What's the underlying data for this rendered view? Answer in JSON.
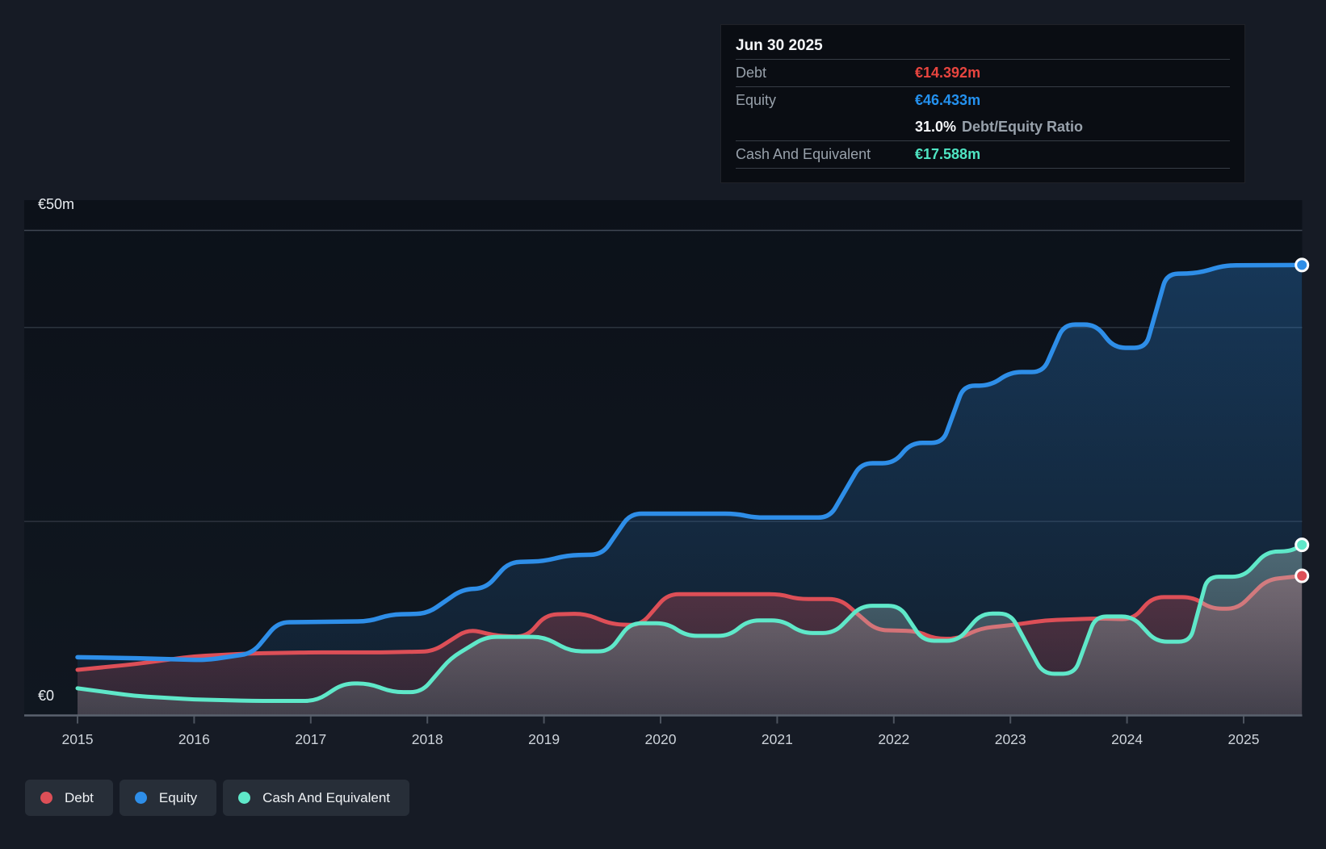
{
  "page": {
    "background": "#161b25"
  },
  "colors": {
    "debt": "#dd4f57",
    "equity": "#2e8ee8",
    "cash": "#5fe8c9",
    "debt_text": "#e8453f",
    "equity_text": "#2491ef",
    "cash_text": "#4fe5c3",
    "grid_major": "#3f4652",
    "grid_minor": "#2c333e",
    "axis": "#5a626e",
    "tick": "#4d545f",
    "year_label": "#cdd3da",
    "value_label": "#e9edf1",
    "plot_bg_top": "#0c1119",
    "plot_bg_bottom": "#101720"
  },
  "tooltip": {
    "title": "Jun 30 2025",
    "rows": [
      {
        "label": "Debt",
        "value": "€14.392m",
        "color_key": "debt"
      },
      {
        "label": "Equity",
        "value": "€46.433m",
        "color_key": "equity"
      },
      {
        "label": "",
        "value": "31.0%",
        "suffix": "Debt/Equity Ratio",
        "color_key": "white"
      },
      {
        "label": "Cash And Equivalent",
        "value": "€17.588m",
        "color_key": "cash"
      }
    ]
  },
  "legend": {
    "items": [
      {
        "label": "Debt",
        "color_key": "debt"
      },
      {
        "label": "Equity",
        "color_key": "equity"
      },
      {
        "label": "Cash And Equivalent",
        "color_key": "cash"
      }
    ]
  },
  "chart_data": {
    "type": "area",
    "unit": "€m",
    "title": "",
    "x_axis": {
      "tick_years": [
        2015,
        2016,
        2017,
        2018,
        2019,
        2020,
        2021,
        2022,
        2023,
        2024,
        2025
      ],
      "range": [
        2015.0,
        2025.5
      ]
    },
    "y_axis": {
      "ylim": [
        0,
        50
      ],
      "top_label": "€50m",
      "zero_label": "€0",
      "gridline_values": [
        50,
        40,
        20,
        0
      ]
    },
    "legend_position": "bottom-left",
    "last_point_date": "Jun 30 2025",
    "series": [
      {
        "key": "equity",
        "name": "Equity",
        "final_value": 46.433,
        "points": [
          [
            2015.0,
            6.0
          ],
          [
            2015.5,
            5.9
          ],
          [
            2016.1,
            5.7
          ],
          [
            2016.5,
            6.4
          ],
          [
            2016.72,
            9.6
          ],
          [
            2017.5,
            9.7
          ],
          [
            2017.68,
            10.4
          ],
          [
            2018.0,
            10.5
          ],
          [
            2018.3,
            13.0
          ],
          [
            2018.5,
            13.1
          ],
          [
            2018.7,
            15.8
          ],
          [
            2019.0,
            15.9
          ],
          [
            2019.2,
            16.5
          ],
          [
            2019.5,
            16.6
          ],
          [
            2019.74,
            20.8
          ],
          [
            2020.65,
            20.8
          ],
          [
            2020.8,
            20.4
          ],
          [
            2021.45,
            20.4
          ],
          [
            2021.72,
            26.0
          ],
          [
            2022.0,
            26.0
          ],
          [
            2022.15,
            28.1
          ],
          [
            2022.42,
            28.1
          ],
          [
            2022.6,
            34.0
          ],
          [
            2022.83,
            34.0
          ],
          [
            2023.0,
            35.4
          ],
          [
            2023.28,
            35.4
          ],
          [
            2023.46,
            40.3
          ],
          [
            2023.73,
            40.3
          ],
          [
            2023.89,
            37.9
          ],
          [
            2024.16,
            37.9
          ],
          [
            2024.34,
            45.5
          ],
          [
            2024.61,
            45.6
          ],
          [
            2024.84,
            46.4
          ],
          [
            2025.5,
            46.433
          ]
        ]
      },
      {
        "key": "debt",
        "name": "Debt",
        "final_value": 14.392,
        "points": [
          [
            2015.0,
            4.7
          ],
          [
            2015.5,
            5.3
          ],
          [
            2016.0,
            6.1
          ],
          [
            2016.5,
            6.4
          ],
          [
            2017.0,
            6.5
          ],
          [
            2017.6,
            6.5
          ],
          [
            2018.05,
            6.6
          ],
          [
            2018.35,
            8.9
          ],
          [
            2018.6,
            8.2
          ],
          [
            2018.85,
            8.1
          ],
          [
            2019.02,
            10.4
          ],
          [
            2019.35,
            10.5
          ],
          [
            2019.58,
            9.4
          ],
          [
            2019.83,
            9.3
          ],
          [
            2020.06,
            12.5
          ],
          [
            2021.03,
            12.5
          ],
          [
            2021.17,
            12.0
          ],
          [
            2021.54,
            12.0
          ],
          [
            2021.85,
            8.8
          ],
          [
            2022.2,
            8.7
          ],
          [
            2022.35,
            7.9
          ],
          [
            2022.55,
            7.9
          ],
          [
            2022.75,
            9.0
          ],
          [
            2023.0,
            9.3
          ],
          [
            2023.3,
            9.8
          ],
          [
            2023.73,
            10.0
          ],
          [
            2024.05,
            9.9
          ],
          [
            2024.22,
            12.2
          ],
          [
            2024.57,
            12.2
          ],
          [
            2024.72,
            11.0
          ],
          [
            2024.95,
            11.0
          ],
          [
            2025.2,
            14.0
          ],
          [
            2025.5,
            14.392
          ]
        ]
      },
      {
        "key": "cash",
        "name": "Cash And Equivalent",
        "final_value": 17.588,
        "points": [
          [
            2015.0,
            2.8
          ],
          [
            2015.5,
            2.0
          ],
          [
            2016.0,
            1.65
          ],
          [
            2016.5,
            1.5
          ],
          [
            2017.05,
            1.5
          ],
          [
            2017.28,
            3.3
          ],
          [
            2017.5,
            3.3
          ],
          [
            2017.7,
            2.4
          ],
          [
            2017.95,
            2.4
          ],
          [
            2018.2,
            5.9
          ],
          [
            2018.5,
            8.1
          ],
          [
            2019.0,
            8.1
          ],
          [
            2019.23,
            6.6
          ],
          [
            2019.56,
            6.6
          ],
          [
            2019.74,
            9.5
          ],
          [
            2020.06,
            9.5
          ],
          [
            2020.22,
            8.2
          ],
          [
            2020.59,
            8.2
          ],
          [
            2020.75,
            9.8
          ],
          [
            2021.05,
            9.8
          ],
          [
            2021.21,
            8.5
          ],
          [
            2021.49,
            8.5
          ],
          [
            2021.72,
            11.3
          ],
          [
            2022.05,
            11.3
          ],
          [
            2022.25,
            7.7
          ],
          [
            2022.55,
            7.7
          ],
          [
            2022.75,
            10.5
          ],
          [
            2023.0,
            10.5
          ],
          [
            2023.28,
            4.3
          ],
          [
            2023.55,
            4.3
          ],
          [
            2023.73,
            10.2
          ],
          [
            2024.05,
            10.2
          ],
          [
            2024.25,
            7.6
          ],
          [
            2024.54,
            7.6
          ],
          [
            2024.69,
            14.3
          ],
          [
            2025.0,
            14.3
          ],
          [
            2025.2,
            16.9
          ],
          [
            2025.4,
            16.9
          ],
          [
            2025.5,
            17.588
          ]
        ]
      }
    ]
  }
}
